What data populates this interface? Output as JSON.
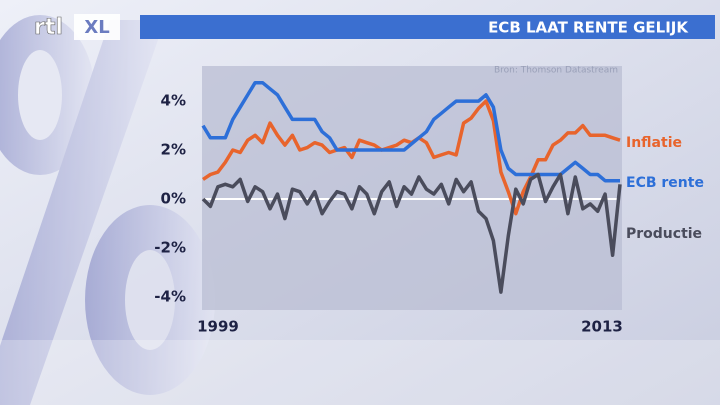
{
  "logo": [
    "rtl",
    "XL"
  ],
  "chart_data": {
    "type": "line",
    "title": "ECB LAAT RENTE GELIJK",
    "source": "Bron: Thomson Datastream",
    "x": [
      1999,
      1999.25,
      1999.5,
      1999.75,
      2000,
      2000.25,
      2000.5,
      2000.75,
      2001,
      2001.25,
      2001.5,
      2001.75,
      2002,
      2002.25,
      2002.5,
      2002.75,
      2003,
      2003.25,
      2003.5,
      2003.75,
      2004,
      2004.25,
      2004.5,
      2004.75,
      2005,
      2005.25,
      2005.5,
      2005.75,
      2006,
      2006.25,
      2006.5,
      2006.75,
      2007,
      2007.25,
      2007.5,
      2007.75,
      2008,
      2008.25,
      2008.5,
      2008.75,
      2009,
      2009.25,
      2009.5,
      2009.75,
      2010,
      2010.25,
      2010.5,
      2010.75,
      2011,
      2011.25,
      2011.5,
      2011.75,
      2012,
      2012.25,
      2012.5,
      2012.75,
      2013
    ],
    "series": [
      {
        "name": "Inflatie",
        "color": "#e8642c",
        "values": [
          0.8,
          1.0,
          1.1,
          1.5,
          2.0,
          1.9,
          2.4,
          2.6,
          2.3,
          3.1,
          2.6,
          2.2,
          2.6,
          2.0,
          2.1,
          2.3,
          2.2,
          1.9,
          2.0,
          2.1,
          1.7,
          2.4,
          2.3,
          2.2,
          2.0,
          2.1,
          2.2,
          2.4,
          2.3,
          2.5,
          2.3,
          1.7,
          1.8,
          1.9,
          1.8,
          3.1,
          3.3,
          3.7,
          4.0,
          3.2,
          1.1,
          0.3,
          -0.6,
          0.3,
          0.9,
          1.6,
          1.6,
          2.2,
          2.4,
          2.7,
          2.7,
          3.0,
          2.6,
          2.6,
          2.6,
          2.5,
          2.4
        ]
      },
      {
        "name": "ECB rente",
        "color": "#2d6fd8",
        "values": [
          3.0,
          2.5,
          2.5,
          2.5,
          3.25,
          3.75,
          4.25,
          4.75,
          4.75,
          4.5,
          4.25,
          3.75,
          3.25,
          3.25,
          3.25,
          3.25,
          2.75,
          2.5,
          2.0,
          2.0,
          2.0,
          2.0,
          2.0,
          2.0,
          2.0,
          2.0,
          2.0,
          2.0,
          2.25,
          2.5,
          2.75,
          3.25,
          3.5,
          3.75,
          4.0,
          4.0,
          4.0,
          4.0,
          4.25,
          3.75,
          2.0,
          1.25,
          1.0,
          1.0,
          1.0,
          1.0,
          1.0,
          1.0,
          1.0,
          1.25,
          1.5,
          1.25,
          1.0,
          1.0,
          0.75,
          0.75,
          0.75
        ]
      },
      {
        "name": "Productie",
        "color": "#4a4c5c",
        "values": [
          0,
          -0.3,
          0.5,
          0.6,
          0.5,
          0.8,
          -0.1,
          0.5,
          0.3,
          -0.4,
          0.2,
          -0.8,
          0.4,
          0.3,
          -0.2,
          0.3,
          -0.6,
          -0.1,
          0.3,
          0.2,
          -0.4,
          0.5,
          0.2,
          -0.6,
          0.3,
          0.7,
          -0.3,
          0.5,
          0.2,
          0.9,
          0.4,
          0.2,
          0.6,
          -0.2,
          0.8,
          0.3,
          0.7,
          -0.5,
          -0.8,
          -1.7,
          -3.8,
          -1.5,
          0.4,
          -0.2,
          0.8,
          1.0,
          -0.1,
          0.5,
          1.0,
          -0.6,
          0.9,
          -0.4,
          -0.2,
          -0.5,
          0.2,
          -2.3,
          0.6
        ]
      }
    ],
    "xlim": [
      1999,
      2013
    ],
    "xticks": [
      1999,
      2013
    ],
    "ylim": [
      -4.45,
      5.35
    ],
    "yticks": [
      {
        "value": -4,
        "label": "-4%"
      },
      {
        "value": -2,
        "label": "-2%"
      },
      {
        "value": 0,
        "label": "0%"
      },
      {
        "value": 2,
        "label": "2%"
      },
      {
        "value": 4,
        "label": "4%"
      }
    ]
  }
}
